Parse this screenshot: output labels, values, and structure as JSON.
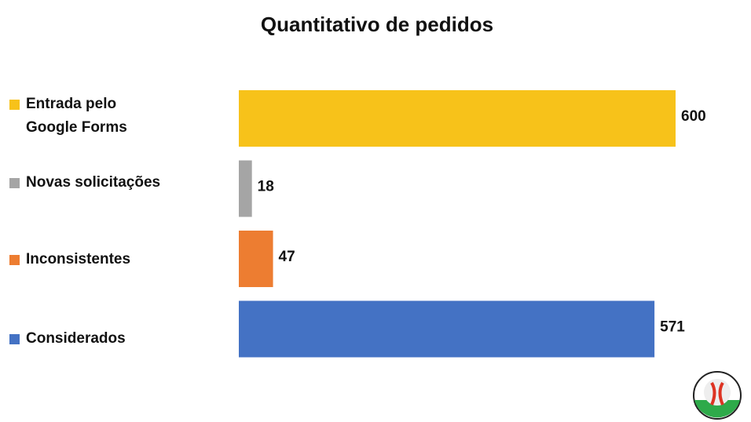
{
  "chart_data": {
    "type": "hbar",
    "title": "Quantitativo de pedidos",
    "categories": [
      "Entrada pelo\nGoogle Forms",
      "Novas solicitações",
      "Inconsistentes",
      "Considerados"
    ],
    "values": [
      600,
      18,
      47,
      571
    ],
    "colors": [
      "#f7c21a",
      "#a5a5a5",
      "#ed7d31",
      "#4472c4"
    ]
  }
}
